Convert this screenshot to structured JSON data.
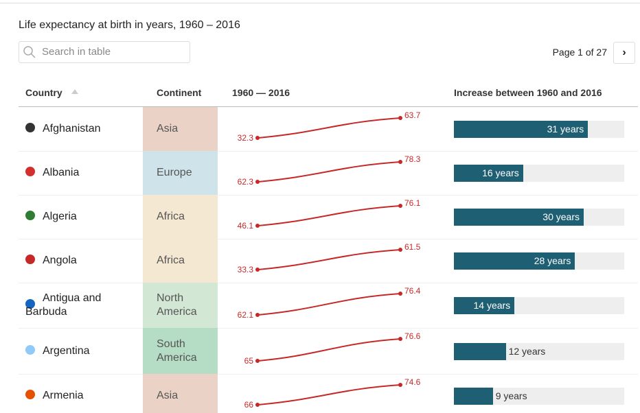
{
  "header": {
    "title": "Life expectancy at birth in years, 1960 – 2016"
  },
  "search": {
    "placeholder": "Search in table"
  },
  "pagination": {
    "label": "Page 1 of 27"
  },
  "table": {
    "columns": [
      "Country",
      "Continent",
      "1960 — 2016",
      "Increase between 1960 and 2016"
    ],
    "rows": [
      {
        "country": "Afghanistan",
        "continent": "Asia",
        "continent_color": "#ead3c6",
        "start": 32.3,
        "end": 63.7,
        "increase": {
          "value": 31,
          "label": "31 years"
        }
      },
      {
        "country": "Albania",
        "continent": "Europe",
        "continent_color": "#cfe3ea",
        "start": 62.3,
        "end": 78.3,
        "increase": {
          "value": 16,
          "label": "16 years"
        }
      },
      {
        "country": "Algeria",
        "continent": "Africa",
        "continent_color": "#f5e8d2",
        "start": 46.1,
        "end": 76.1,
        "increase": {
          "value": 30,
          "label": "30 years"
        }
      },
      {
        "country": "Angola",
        "continent": "Africa",
        "continent_color": "#f5e8d2",
        "start": 33.3,
        "end": 61.5,
        "increase": {
          "value": 28,
          "label": "28 years"
        }
      },
      {
        "country": "Antigua and Barbuda",
        "continent": "North America",
        "continent_color": "#d3e8d4",
        "start": 62.1,
        "end": 76.4,
        "increase": {
          "value": 14,
          "label": "14 years"
        }
      },
      {
        "country": "Argentina",
        "continent": "South America",
        "continent_color": "#b5dcc4",
        "start": 65,
        "end": 76.6,
        "increase": {
          "value": 12,
          "label": "12 years"
        }
      },
      {
        "country": "Armenia",
        "continent": "Asia",
        "continent_color": "#ead3c6",
        "start": 66,
        "end": 74.6,
        "increase": {
          "value": 9,
          "label": "9 years"
        }
      }
    ]
  }
}
